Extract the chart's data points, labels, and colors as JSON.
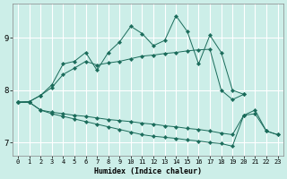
{
  "xlabel": "Humidex (Indice chaleur)",
  "background_color": "#cceee8",
  "line_color": "#1a6b5a",
  "grid_color": "#ffffff",
  "xlim": [
    -0.5,
    23.5
  ],
  "ylim": [
    6.75,
    9.65
  ],
  "yticks": [
    7,
    8,
    9
  ],
  "xticks": [
    0,
    1,
    2,
    3,
    4,
    5,
    6,
    7,
    8,
    9,
    10,
    11,
    12,
    13,
    14,
    15,
    16,
    17,
    18,
    19,
    20,
    21,
    22,
    23
  ],
  "series": [
    {
      "x": [
        0,
        1,
        2,
        3,
        4,
        5,
        6,
        7,
        8,
        9,
        10,
        11,
        12,
        13,
        14,
        15,
        16,
        17,
        18,
        19,
        20
      ],
      "y": [
        7.77,
        7.78,
        7.9,
        8.1,
        8.5,
        8.55,
        8.72,
        8.38,
        8.72,
        8.92,
        9.22,
        9.08,
        8.85,
        8.95,
        9.42,
        9.12,
        8.5,
        9.05,
        8.72,
        8.0,
        7.92
      ]
    },
    {
      "x": [
        0,
        1,
        2,
        3,
        4,
        5,
        6,
        7,
        8,
        9,
        10,
        11,
        12,
        13,
        14,
        15,
        16,
        17,
        18,
        19,
        20
      ],
      "y": [
        7.77,
        7.78,
        7.9,
        8.05,
        8.3,
        8.42,
        8.55,
        8.48,
        8.52,
        8.55,
        8.6,
        8.65,
        8.67,
        8.7,
        8.72,
        8.75,
        8.77,
        8.78,
        8.0,
        7.82,
        7.92
      ]
    },
    {
      "x": [
        0,
        1,
        2,
        3,
        4,
        5,
        6,
        7,
        8,
        9,
        10,
        11,
        12,
        13,
        14,
        15,
        16,
        17,
        18,
        19,
        20,
        21,
        22,
        23
      ],
      "y": [
        7.77,
        7.77,
        7.62,
        7.55,
        7.5,
        7.45,
        7.4,
        7.35,
        7.3,
        7.25,
        7.2,
        7.15,
        7.12,
        7.1,
        7.08,
        7.05,
        7.03,
        7.0,
        6.98,
        6.93,
        7.52,
        7.55,
        7.22,
        7.15
      ]
    },
    {
      "x": [
        0,
        1,
        2,
        3,
        4,
        5,
        6,
        7,
        8,
        9,
        10,
        11,
        12,
        13,
        14,
        15,
        16,
        17,
        18,
        19,
        20,
        21,
        22,
        23
      ],
      "y": [
        7.77,
        7.77,
        7.62,
        7.58,
        7.55,
        7.52,
        7.5,
        7.47,
        7.44,
        7.42,
        7.4,
        7.37,
        7.35,
        7.32,
        7.3,
        7.27,
        7.25,
        7.22,
        7.18,
        7.15,
        7.52,
        7.62,
        7.22,
        7.15
      ]
    }
  ]
}
